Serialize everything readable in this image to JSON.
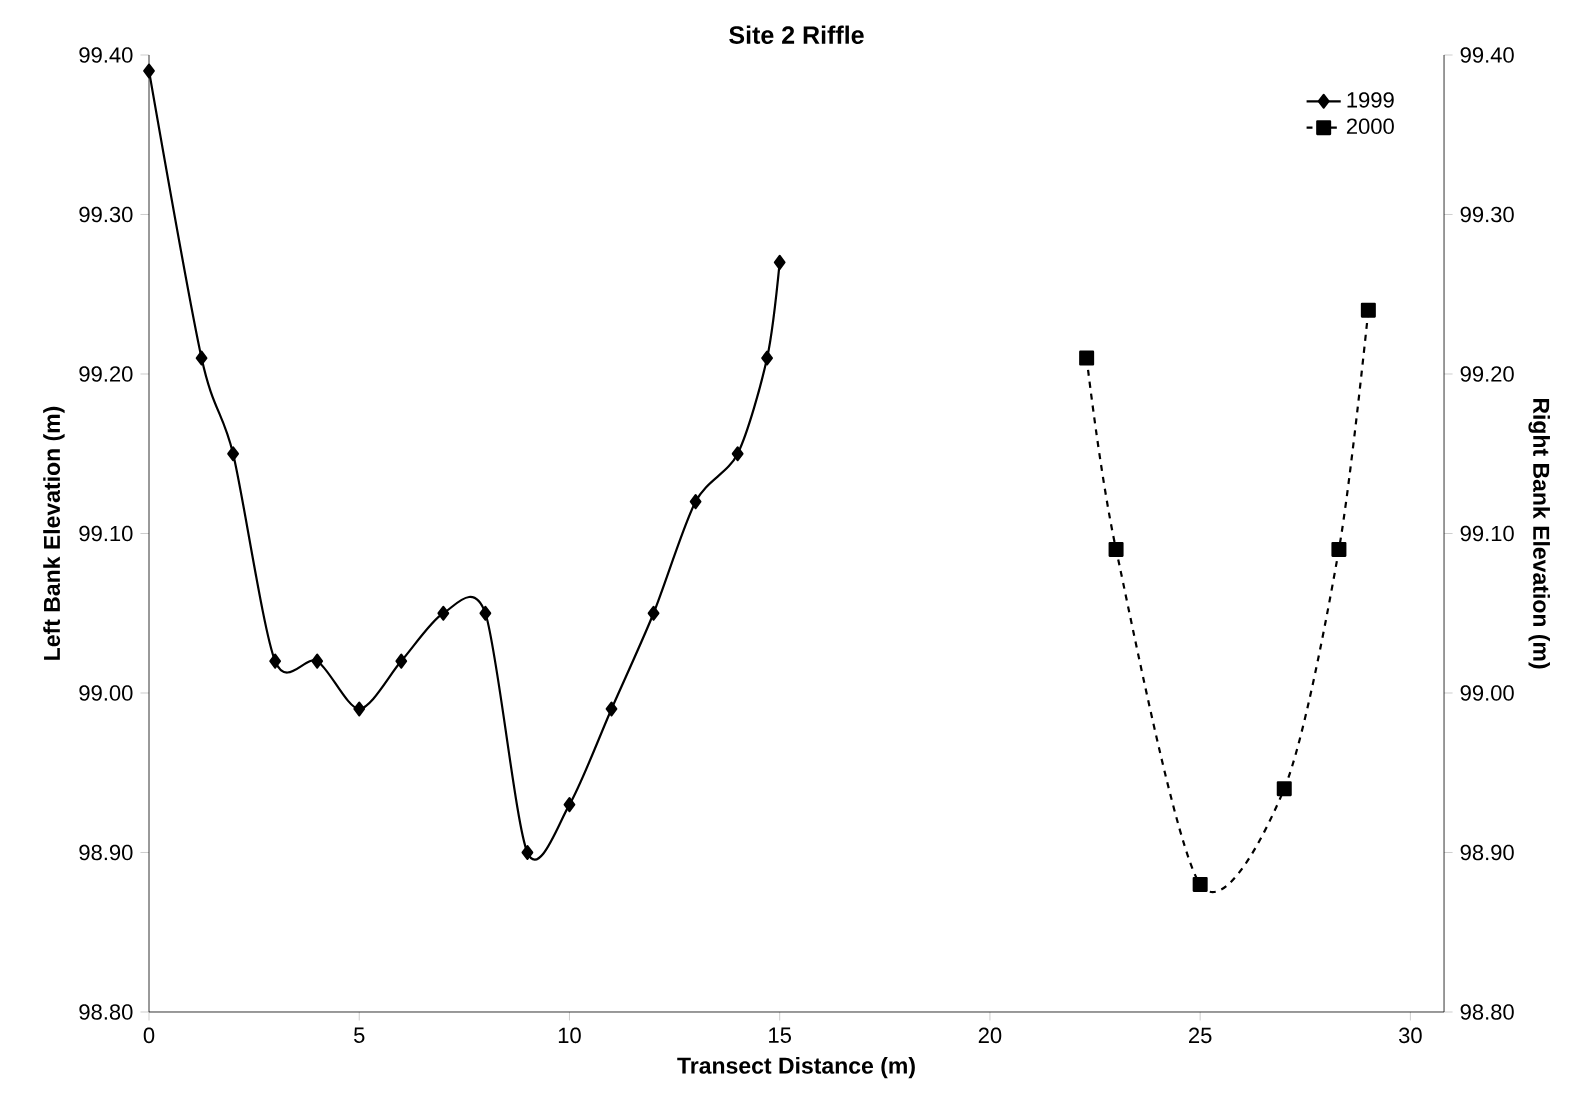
{
  "chart_data": {
    "type": "line",
    "title": "Site 2 Riffle",
    "xlabel": "Transect Distance (m)",
    "ylabel": "Left Bank Elevation (m)",
    "y2label": "Right Bank Elevation (m)",
    "xlim": [
      0,
      30.8
    ],
    "xticks": [
      0,
      5,
      10,
      15,
      20,
      25,
      30
    ],
    "ylim": [
      98.8,
      99.4
    ],
    "yticks": [
      {
        "value": 98.8,
        "label": "98.80"
      },
      {
        "value": 98.9,
        "label": "98.90"
      },
      {
        "value": 99.0,
        "label": "99.00"
      },
      {
        "value": 99.1,
        "label": "99.10"
      },
      {
        "value": 99.2,
        "label": "99.20"
      },
      {
        "value": 99.3,
        "label": "99.30"
      },
      {
        "value": 99.4,
        "label": "99.40"
      }
    ],
    "y2lim": [
      98.8,
      99.4
    ],
    "y2ticks": [
      {
        "value": 98.8,
        "label": "98.80"
      },
      {
        "value": 98.9,
        "label": "98.90"
      },
      {
        "value": 99.0,
        "label": "99.00"
      },
      {
        "value": 99.1,
        "label": "99.10"
      },
      {
        "value": 99.2,
        "label": "99.20"
      },
      {
        "value": 99.3,
        "label": "99.30"
      },
      {
        "value": 99.4,
        "label": "99.40"
      }
    ],
    "legend": "top right",
    "grid": false,
    "series": [
      {
        "name": "1999",
        "color": "#000000",
        "marker": "diamond",
        "line_style": "solid",
        "x": [
          0,
          1.25,
          2,
          3,
          4,
          5,
          6,
          7,
          8,
          9,
          10,
          11,
          12,
          13,
          14,
          14.7,
          15
        ],
        "values": [
          99.39,
          99.21,
          99.15,
          99.02,
          99.02,
          98.99,
          99.02,
          99.05,
          99.05,
          98.9,
          98.93,
          98.99,
          99.05,
          99.12,
          99.15,
          99.21,
          99.27
        ]
      },
      {
        "name": "2000",
        "color": "#000000",
        "marker": "square",
        "line_style": "dashed",
        "axis": "y2",
        "x": [
          22.3,
          23,
          25,
          27,
          28.3,
          29
        ],
        "values": [
          99.21,
          99.09,
          98.88,
          98.94,
          99.09,
          99.24
        ]
      }
    ]
  }
}
